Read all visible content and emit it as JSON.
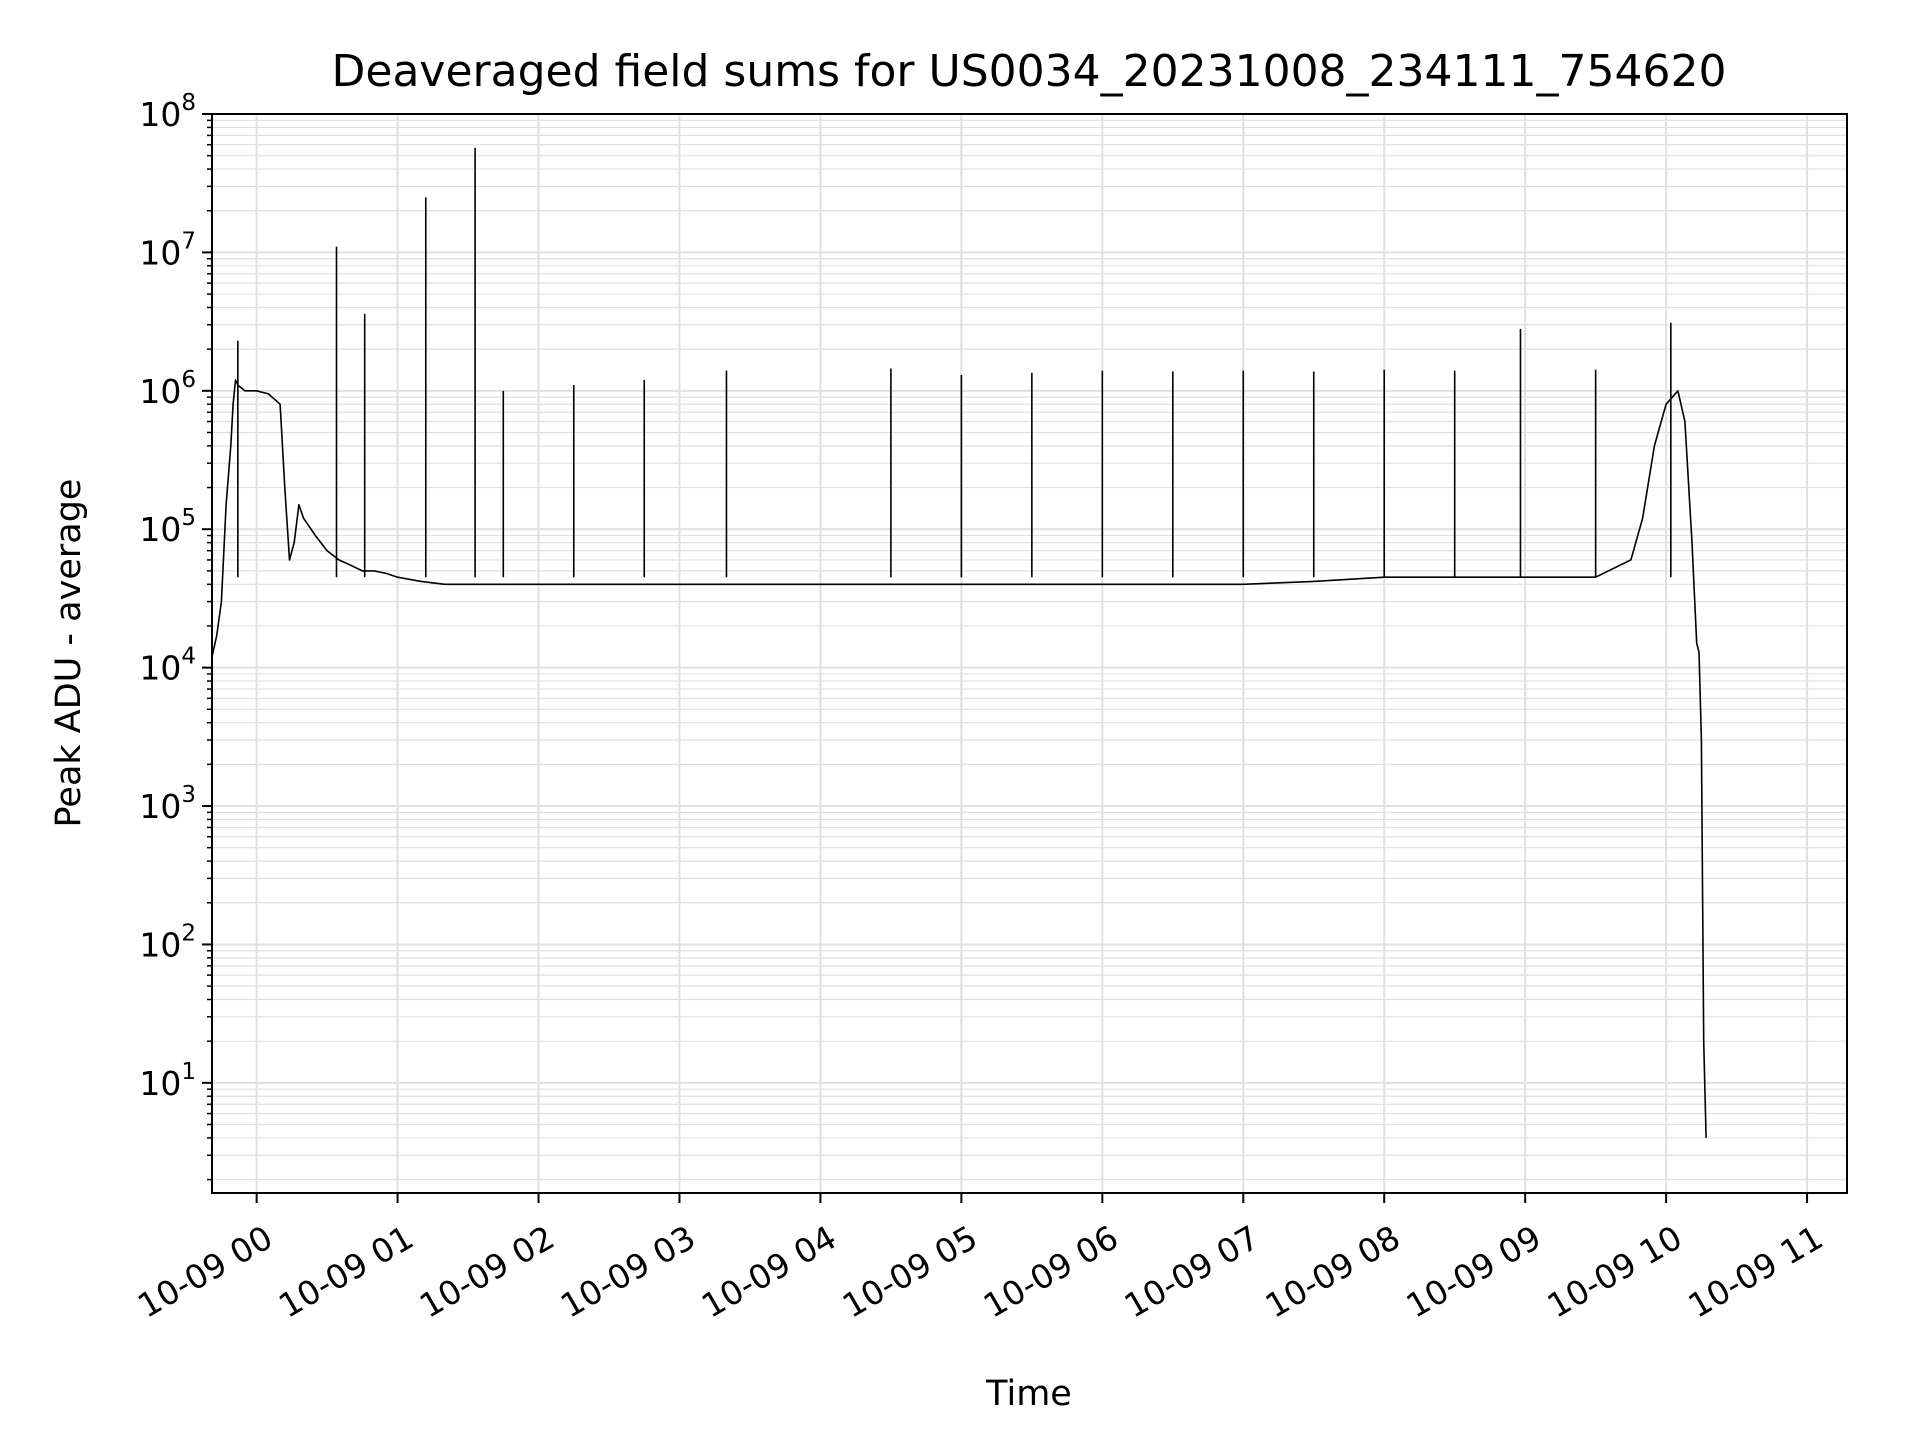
{
  "chart_data": {
    "type": "line",
    "title": "Deaveraged field sums for US0034_20231008_234111_754620",
    "xlabel": "Time",
    "ylabel": "Peak ADU - average",
    "yscale": "log",
    "ylim": [
      1.6,
      100000000
    ],
    "xlim": [
      "2023-10-08 23:41",
      "2023-10-09 11:17"
    ],
    "grid": true,
    "line_color": "#000000",
    "grid_color": "#e0e0e0",
    "x_ticks": [
      {
        "value": "2023-10-09 00:00",
        "label": "10-09 00"
      },
      {
        "value": "2023-10-09 01:00",
        "label": "10-09 01"
      },
      {
        "value": "2023-10-09 02:00",
        "label": "10-09 02"
      },
      {
        "value": "2023-10-09 03:00",
        "label": "10-09 03"
      },
      {
        "value": "2023-10-09 04:00",
        "label": "10-09 04"
      },
      {
        "value": "2023-10-09 05:00",
        "label": "10-09 05"
      },
      {
        "value": "2023-10-09 06:00",
        "label": "10-09 06"
      },
      {
        "value": "2023-10-09 07:00",
        "label": "10-09 07"
      },
      {
        "value": "2023-10-09 08:00",
        "label": "10-09 08"
      },
      {
        "value": "2023-10-09 09:00",
        "label": "10-09 09"
      },
      {
        "value": "2023-10-09 10:00",
        "label": "10-09 10"
      },
      {
        "value": "2023-10-09 11:00",
        "label": "10-09 11"
      }
    ],
    "y_ticks": [
      {
        "value": 10,
        "base": "10",
        "exp": "1"
      },
      {
        "value": 100,
        "base": "10",
        "exp": "2"
      },
      {
        "value": 1000,
        "base": "10",
        "exp": "3"
      },
      {
        "value": 10000,
        "base": "10",
        "exp": "4"
      },
      {
        "value": 100000,
        "base": "10",
        "exp": "5"
      },
      {
        "value": 1000000,
        "base": "10",
        "exp": "6"
      },
      {
        "value": 10000000,
        "base": "10",
        "exp": "7"
      },
      {
        "value": 100000000,
        "base": "10",
        "exp": "8"
      }
    ],
    "series": [
      {
        "x": [
          "2023-10-08 23:41",
          "2023-10-08 23:43",
          "2023-10-08 23:45",
          "2023-10-08 23:47",
          "2023-10-08 23:49",
          "2023-10-08 23:50",
          "2023-10-08 23:51",
          "2023-10-08 23:52",
          "2023-10-08 23:55",
          "2023-10-09 00:00",
          "2023-10-09 00:05",
          "2023-10-09 00:10",
          "2023-10-09 00:12",
          "2023-10-09 00:14",
          "2023-10-09 00:16",
          "2023-10-09 00:18",
          "2023-10-09 00:20",
          "2023-10-09 00:25",
          "2023-10-09 00:30",
          "2023-10-09 00:35",
          "2023-10-09 00:40",
          "2023-10-09 00:45",
          "2023-10-09 00:50",
          "2023-10-09 00:55",
          "2023-10-09 01:00",
          "2023-10-09 01:10",
          "2023-10-09 01:20",
          "2023-10-09 01:30",
          "2023-10-09 01:45",
          "2023-10-09 02:00",
          "2023-10-09 02:30",
          "2023-10-09 03:00",
          "2023-10-09 03:30",
          "2023-10-09 04:00",
          "2023-10-09 04:30",
          "2023-10-09 05:00",
          "2023-10-09 05:30",
          "2023-10-09 06:00",
          "2023-10-09 06:30",
          "2023-10-09 07:00",
          "2023-10-09 07:30",
          "2023-10-09 08:00",
          "2023-10-09 08:30",
          "2023-10-09 09:00",
          "2023-10-09 09:30",
          "2023-10-09 09:45",
          "2023-10-09 09:50",
          "2023-10-09 09:55",
          "2023-10-09 10:00",
          "2023-10-09 10:05",
          "2023-10-09 10:08",
          "2023-10-09 10:11",
          "2023-10-09 10:13",
          "2023-10-09 10:14",
          "2023-10-09 10:15",
          "2023-10-09 10:16",
          "2023-10-09 10:17"
        ],
        "y": [
          12000,
          17000,
          30000,
          150000,
          400000,
          800000,
          1200000,
          1100000,
          1000000,
          1000000,
          950000,
          800000,
          200000,
          60000,
          80000,
          150000,
          120000,
          90000,
          70000,
          60000,
          55000,
          50000,
          50000,
          48000,
          45000,
          42000,
          40000,
          40000,
          40000,
          40000,
          40000,
          40000,
          40000,
          40000,
          40000,
          40000,
          40000,
          40000,
          40000,
          40000,
          42000,
          45000,
          45000,
          45000,
          45000,
          60000,
          120000,
          400000,
          800000,
          1000000,
          600000,
          80000,
          15000,
          13000,
          3000,
          20,
          4
        ]
      }
    ],
    "spikes": [
      {
        "x": "2023-10-08 23:52",
        "y": 2300000
      },
      {
        "x": "2023-10-09 00:34",
        "y": 11000000
      },
      {
        "x": "2023-10-09 00:46",
        "y": 3600000
      },
      {
        "x": "2023-10-09 01:12",
        "y": 25000000
      },
      {
        "x": "2023-10-09 01:33",
        "y": 57000000
      },
      {
        "x": "2023-10-09 01:45",
        "y": 1000000
      },
      {
        "x": "2023-10-09 02:15",
        "y": 1100000
      },
      {
        "x": "2023-10-09 02:45",
        "y": 1200000
      },
      {
        "x": "2023-10-09 03:20",
        "y": 1400000
      },
      {
        "x": "2023-10-09 04:30",
        "y": 1450000
      },
      {
        "x": "2023-10-09 05:00",
        "y": 1300000
      },
      {
        "x": "2023-10-09 05:30",
        "y": 1350000
      },
      {
        "x": "2023-10-09 06:00",
        "y": 1400000
      },
      {
        "x": "2023-10-09 06:30",
        "y": 1380000
      },
      {
        "x": "2023-10-09 07:00",
        "y": 1400000
      },
      {
        "x": "2023-10-09 07:30",
        "y": 1380000
      },
      {
        "x": "2023-10-09 08:00",
        "y": 1420000
      },
      {
        "x": "2023-10-09 08:30",
        "y": 1400000
      },
      {
        "x": "2023-10-09 08:58",
        "y": 2800000
      },
      {
        "x": "2023-10-09 09:30",
        "y": 1420000
      },
      {
        "x": "2023-10-09 10:02",
        "y": 3100000
      }
    ]
  }
}
